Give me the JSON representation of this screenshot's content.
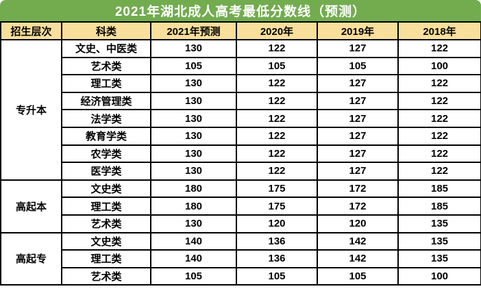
{
  "title": "2021年湖北成人高考最低分数线（预测）",
  "columns": [
    "招生层次",
    "科类",
    "2021年预测",
    "2020年",
    "2019年",
    "2018年"
  ],
  "groups": [
    {
      "level": "专升本",
      "rows": [
        {
          "category": "文史、中医类",
          "y2021": "130",
          "y2020": "122",
          "y2019": "127",
          "y2018": "122"
        },
        {
          "category": "艺术类",
          "y2021": "105",
          "y2020": "105",
          "y2019": "105",
          "y2018": "100"
        },
        {
          "category": "理工类",
          "y2021": "130",
          "y2020": "122",
          "y2019": "127",
          "y2018": "122"
        },
        {
          "category": "经济管理类",
          "y2021": "130",
          "y2020": "122",
          "y2019": "127",
          "y2018": "122"
        },
        {
          "category": "法学类",
          "y2021": "130",
          "y2020": "122",
          "y2019": "127",
          "y2018": "122"
        },
        {
          "category": "教育学类",
          "y2021": "130",
          "y2020": "122",
          "y2019": "127",
          "y2018": "122"
        },
        {
          "category": "农学类",
          "y2021": "130",
          "y2020": "122",
          "y2019": "127",
          "y2018": "122"
        },
        {
          "category": "医学类",
          "y2021": "130",
          "y2020": "122",
          "y2019": "127",
          "y2018": "122"
        }
      ]
    },
    {
      "level": "高起本",
      "rows": [
        {
          "category": "文史类",
          "y2021": "180",
          "y2020": "175",
          "y2019": "172",
          "y2018": "185"
        },
        {
          "category": "理工类",
          "y2021": "180",
          "y2020": "175",
          "y2019": "172",
          "y2018": "185"
        },
        {
          "category": "艺术类",
          "y2021": "130",
          "y2020": "120",
          "y2019": "120",
          "y2018": "135"
        }
      ]
    },
    {
      "level": "高起专",
      "rows": [
        {
          "category": "文史类",
          "y2021": "140",
          "y2020": "136",
          "y2019": "142",
          "y2018": "135"
        },
        {
          "category": "理工类",
          "y2021": "140",
          "y2020": "136",
          "y2019": "142",
          "y2018": "135"
        },
        {
          "category": "艺术类",
          "y2021": "105",
          "y2020": "105",
          "y2019": "105",
          "y2018": "100"
        }
      ]
    }
  ],
  "colors": {
    "title_bar_green": "#72AC4E",
    "header_tan": "#F8DF9B",
    "highlight_red": "#FF0000",
    "border_black": "#000000",
    "cell_white": "#FFFFFF",
    "title_text_white": "#FFFFFF"
  },
  "chart_data": {
    "type": "table",
    "title": "2021年湖北成人高考最低分数线（预测）",
    "columns": [
      "招生层次",
      "科类",
      "2021年预测",
      "2020年",
      "2019年",
      "2018年"
    ],
    "rows": [
      [
        "专升本",
        "文史、中医类",
        130,
        122,
        127,
        122
      ],
      [
        "专升本",
        "艺术类",
        105,
        105,
        105,
        100
      ],
      [
        "专升本",
        "理工类",
        130,
        122,
        127,
        122
      ],
      [
        "专升本",
        "经济管理类",
        130,
        122,
        127,
        122
      ],
      [
        "专升本",
        "法学类",
        130,
        122,
        127,
        122
      ],
      [
        "专升本",
        "教育学类",
        130,
        122,
        127,
        122
      ],
      [
        "专升本",
        "农学类",
        130,
        122,
        127,
        122
      ],
      [
        "专升本",
        "医学类",
        130,
        122,
        127,
        122
      ],
      [
        "高起本",
        "文史类",
        180,
        175,
        172,
        185
      ],
      [
        "高起本",
        "理工类",
        180,
        175,
        172,
        185
      ],
      [
        "高起本",
        "艺术类",
        130,
        120,
        120,
        135
      ],
      [
        "高起专",
        "文史类",
        140,
        136,
        142,
        135
      ],
      [
        "高起专",
        "理工类",
        140,
        136,
        142,
        135
      ],
      [
        "高起专",
        "艺术类",
        105,
        105,
        105,
        100
      ]
    ],
    "layout": {
      "highlight_column": "2021年预测",
      "merged_first_column_groups": [
        8,
        3,
        3
      ],
      "grid": true
    }
  }
}
